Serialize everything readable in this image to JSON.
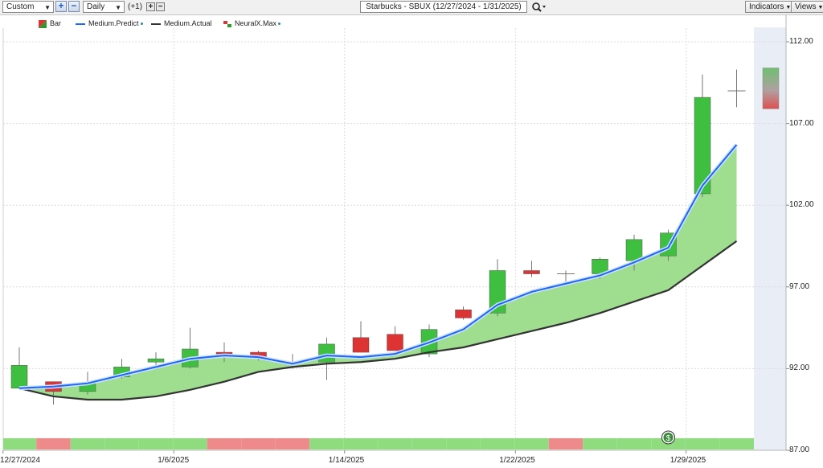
{
  "toolbar": {
    "period": "Custom",
    "interval": "Daily",
    "offset": "(+1)",
    "title": "Starbucks - SBUX (12/27/2024 - 1/31/2025)",
    "indicators_label": "Indicators",
    "views_label": "Views",
    "plus_icon": "plus-icon",
    "minus_icon": "minus-icon",
    "search_icon": "magnifier-icon"
  },
  "legend": [
    {
      "label": "Bar",
      "color": "#2a9a2a"
    },
    {
      "label": "Medium.Predict",
      "color": "#1a66ff"
    },
    {
      "label": "Medium.Actual",
      "color": "#333333"
    },
    {
      "label": "NeuralX.Max",
      "color": "#2a9a2a"
    }
  ],
  "chart_data": {
    "type": "candlestick",
    "y_ticks": [
      "112.00",
      "107.00",
      "102.00",
      "97.00",
      "92.00",
      "87.00"
    ],
    "x_ticks": [
      "12/27/2024",
      "1/6/2025",
      "1/14/2025",
      "1/22/2025",
      "1/29/2025"
    ],
    "ylim": [
      87,
      112.5
    ],
    "colors": {
      "up": "#3fbf3f",
      "down": "#dd3333",
      "predict": "#1a66ff",
      "actual": "#333333",
      "fill": "#9ede8e",
      "band_up": "#8fdc7f",
      "band_down": "#ee8a8a"
    },
    "candles": [
      {
        "o": 90.8,
        "h": 93.3,
        "l": 90.8,
        "c": 92.2
      },
      {
        "o": 91.2,
        "h": 91.2,
        "l": 89.8,
        "c": 90.6
      },
      {
        "o": 90.6,
        "h": 91.8,
        "l": 90.4,
        "c": 91.1
      },
      {
        "o": 91.5,
        "h": 92.6,
        "l": 91.4,
        "c": 92.1
      },
      {
        "o": 92.4,
        "h": 93.0,
        "l": 92.0,
        "c": 92.6
      },
      {
        "o": 92.1,
        "h": 94.5,
        "l": 92.0,
        "c": 93.2
      },
      {
        "o": 93.0,
        "h": 93.6,
        "l": 92.4,
        "c": 92.9
      },
      {
        "o": 93.0,
        "h": 93.1,
        "l": 92.5,
        "c": 92.7
      },
      {
        "o": 92.3,
        "h": 92.9,
        "l": 92.0,
        "c": 92.4
      },
      {
        "o": 92.4,
        "h": 93.9,
        "l": 91.3,
        "c": 93.5
      },
      {
        "o": 93.9,
        "h": 94.9,
        "l": 93.0,
        "c": 93.0
      },
      {
        "o": 94.1,
        "h": 94.6,
        "l": 93.1,
        "c": 93.1
      },
      {
        "o": 92.9,
        "h": 94.7,
        "l": 92.7,
        "c": 94.4
      },
      {
        "o": 95.6,
        "h": 95.8,
        "l": 95.0,
        "c": 95.1
      },
      {
        "o": 95.4,
        "h": 98.7,
        "l": 95.2,
        "c": 98.0
      },
      {
        "o": 98.0,
        "h": 98.6,
        "l": 97.6,
        "c": 97.8
      },
      {
        "o": 97.8,
        "h": 98.0,
        "l": 97.2,
        "c": 97.8
      },
      {
        "o": 97.8,
        "h": 98.8,
        "l": 97.5,
        "c": 98.7
      },
      {
        "o": 98.6,
        "h": 100.2,
        "l": 98.0,
        "c": 99.9
      },
      {
        "o": 98.9,
        "h": 100.5,
        "l": 98.6,
        "c": 100.3
      },
      {
        "o": 102.7,
        "h": 110.0,
        "l": 102.5,
        "c": 108.6
      },
      {
        "o": 109.0,
        "h": 110.3,
        "l": 108.0,
        "c": 109.0
      }
    ],
    "forecast": {
      "high": 110.4,
      "low": 107.9
    },
    "medium_predict": [
      90.8,
      90.9,
      91.1,
      91.6,
      92.1,
      92.6,
      92.8,
      92.7,
      92.3,
      92.8,
      92.7,
      92.9,
      93.6,
      94.4,
      95.9,
      96.7,
      97.2,
      97.7,
      98.5,
      99.4,
      103.2,
      105.7
    ],
    "medium_actual": [
      90.8,
      90.3,
      90.1,
      90.1,
      90.3,
      90.7,
      91.2,
      91.8,
      92.1,
      92.3,
      92.4,
      92.6,
      93.0,
      93.3,
      93.8,
      94.3,
      94.8,
      95.4,
      96.1,
      96.8,
      98.3,
      99.8
    ],
    "signal_band": [
      "up",
      "down",
      "up",
      "up",
      "up",
      "up",
      "down",
      "down",
      "down",
      "up",
      "up",
      "up",
      "up",
      "up",
      "up",
      "up",
      "down",
      "up",
      "up",
      "up",
      "up",
      "up"
    ],
    "dividend_marker": "$"
  }
}
